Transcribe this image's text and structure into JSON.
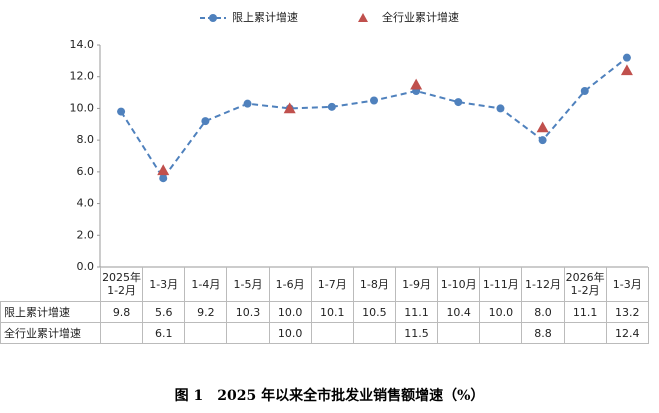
{
  "chart_data": {
    "type": "line",
    "title": "图 1　2025 年以来全市批发业销售额增速（%）",
    "categories": [
      "2025年\n1-2月",
      "1-3月",
      "1-4月",
      "1-5月",
      "1-6月",
      "1-7月",
      "1-8月",
      "1-9月",
      "1-10月",
      "1-11月",
      "1-12月",
      "2026年\n1-2月",
      "1-3月"
    ],
    "series": [
      {
        "name": "限上累计增速",
        "color": "#4f81bd",
        "style": "line",
        "values": [
          9.8,
          5.6,
          9.2,
          10.3,
          10.0,
          10.1,
          10.5,
          11.1,
          10.4,
          10.0,
          8.0,
          11.1,
          13.2
        ],
        "value_labels": [
          "9.8",
          "5.6",
          "9.2",
          "10.3",
          "10.0",
          "10.1",
          "10.5",
          "11.1",
          "10.4",
          "10.0",
          "8.0",
          "11.1",
          "13.2"
        ]
      },
      {
        "name": "全行业累计增速",
        "color": "#c0504d",
        "style": "scatter",
        "values": [
          null,
          6.1,
          null,
          null,
          10.0,
          null,
          null,
          11.5,
          null,
          null,
          8.8,
          null,
          12.4
        ],
        "value_labels": [
          null,
          "6.1",
          null,
          null,
          "10.0",
          null,
          null,
          "11.5",
          null,
          null,
          "8.8",
          null,
          "12.4"
        ]
      }
    ],
    "ylim": [
      0,
      14
    ],
    "yticks": [
      {
        "value": 0,
        "label": "0.0"
      },
      {
        "value": 2,
        "label": "2.0"
      },
      {
        "value": 4,
        "label": "4.0"
      },
      {
        "value": 6,
        "label": "6.0"
      },
      {
        "value": 8,
        "label": "8.0"
      },
      {
        "value": 10,
        "label": "10.0"
      },
      {
        "value": 12,
        "label": "12.0"
      },
      {
        "value": 14,
        "label": "14.0"
      }
    ],
    "legend": "top"
  }
}
